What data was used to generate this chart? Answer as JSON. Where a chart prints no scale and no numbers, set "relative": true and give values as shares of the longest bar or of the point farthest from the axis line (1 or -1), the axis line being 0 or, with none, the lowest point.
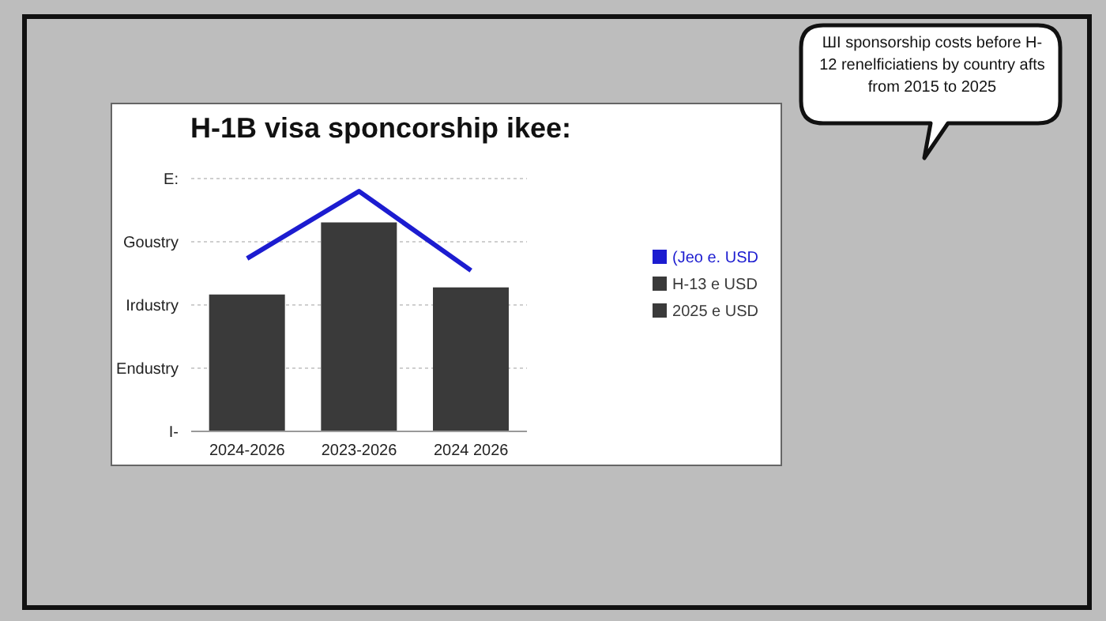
{
  "chart_data": {
    "type": "bar",
    "title": "H-1B visa sponcorship ikee:",
    "relative": true,
    "categories": [
      "2024-2026",
      "2023-2026",
      "2024 2026"
    ],
    "series": [
      {
        "type": "line",
        "name": "(Jeo e. USD",
        "color": "#1c1cd0",
        "values": [
          0.72,
          1,
          0.67
        ]
      },
      {
        "name": "H-13 e USD",
        "color": "#3a3a3a",
        "values": [
          0.57,
          0.87,
          0.6
        ]
      },
      {
        "type": "line",
        "name": "2025 e USD",
        "color": "#3a3a3a",
        "values": [
          null,
          null,
          null
        ]
      }
    ],
    "grid": "y",
    "legend": "right",
    "marker": "none",
    "annotations": [
      "ШI sponsorship costs before H-12 renelficiatiens by country afts from 2015 to 2025",
      "E:",
      "Goustry",
      "Irdustry",
      "Endustry",
      "I-"
    ]
  }
}
